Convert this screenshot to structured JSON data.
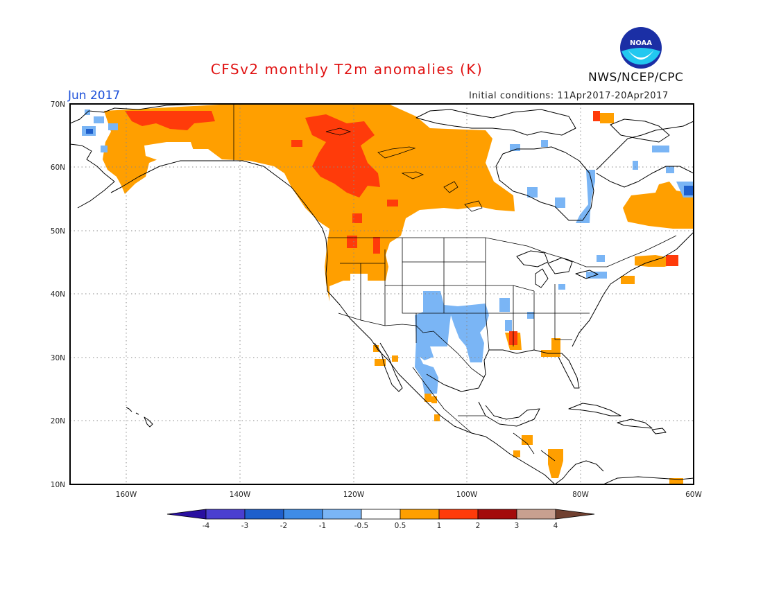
{
  "title": "CFSv2 monthly T2m anomalies (K)",
  "organization": "NWS/NCEP/CPC",
  "logo_text": "NOAA",
  "valid_month": "Jun 2017",
  "initial_conditions": "Initial conditions: 11Apr2017-20Apr2017",
  "map": {
    "lon_range": [
      -170,
      -60
    ],
    "lat_range": [
      10,
      70
    ],
    "lat_labels": [
      "70N",
      "60N",
      "50N",
      "40N",
      "30N",
      "20N",
      "10N"
    ],
    "lon_labels": [
      "160W",
      "140W",
      "120W",
      "100W",
      "80W",
      "60W"
    ],
    "grid": "dotted"
  },
  "colorbar": {
    "labels": [
      "-4",
      "-3",
      "-2",
      "-1",
      "-0.5",
      "0.5",
      "1",
      "2",
      "3",
      "4"
    ],
    "colors": [
      "#2a10a0",
      "#4a3fd0",
      "#1e5fcc",
      "#3f8ce6",
      "#7ab5f5",
      "#ffffff",
      "#ff9f00",
      "#ff3b0a",
      "#a30b0b",
      "#c8a090",
      "#704030"
    ]
  },
  "anomaly_regions": [
    {
      "name": "alaska-yukon-canada-warm",
      "category": "0.5-1",
      "color": "#ff9f00"
    },
    {
      "name": "northern-alaska-hot",
      "category": "1-2",
      "color": "#ff3b0a"
    },
    {
      "name": "western-canada-hot",
      "category": "1-2",
      "color": "#ff3b0a"
    },
    {
      "name": "pacific-northwest-warm",
      "category": "0.5-1",
      "color": "#ff9f00"
    },
    {
      "name": "southern-plains-cool",
      "category": "-1--0.5",
      "color": "#7ab5f5"
    },
    {
      "name": "hudson-bay-cool",
      "category": "-1--0.5",
      "color": "#7ab5f5"
    },
    {
      "name": "labrador-warm",
      "category": "0.5-1",
      "color": "#ff9f00"
    },
    {
      "name": "central-america-warm",
      "category": "0.5-1",
      "color": "#ff9f00"
    }
  ]
}
